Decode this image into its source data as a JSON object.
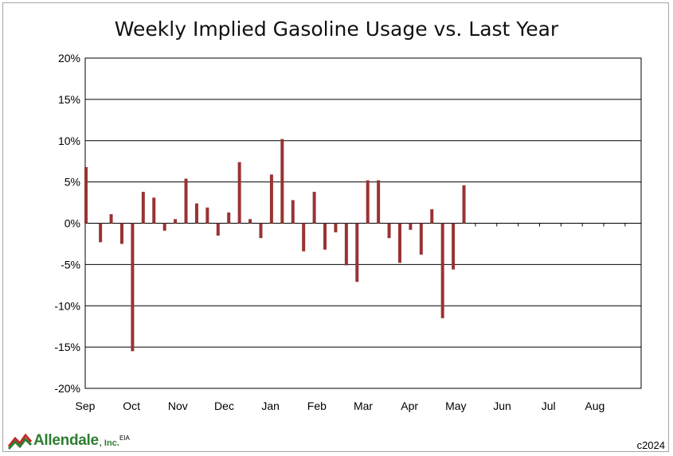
{
  "chart_data": {
    "type": "bar",
    "title": "Weekly Implied Gasoline Usage vs. Last Year",
    "xlabel": "",
    "ylabel": "",
    "ylim": [
      -20,
      20
    ],
    "y_ticks": [
      "20%",
      "15%",
      "10%",
      "5%",
      "0%",
      "-5%",
      "-10%",
      "-15%",
      "-20%"
    ],
    "y_tick_values": [
      20,
      15,
      10,
      5,
      0,
      -5,
      -10,
      -15,
      -20
    ],
    "x_ticks": [
      "Sep",
      "Oct",
      "Nov",
      "Dec",
      "Jan",
      "Feb",
      "Mar",
      "Apr",
      "May",
      "Jun",
      "Jul",
      "Aug"
    ],
    "weeks_total": 52,
    "grid": true,
    "legend": "none",
    "bar_color": "#993333",
    "series": [
      {
        "values": [
          6.8,
          -2.3,
          1.1,
          -2.5,
          -15.5,
          3.8,
          3.1,
          -0.9,
          0.5,
          5.4,
          2.4,
          1.9,
          -1.5,
          1.3,
          7.4,
          0.5,
          -1.8,
          5.9,
          10.2,
          2.8,
          -3.4,
          3.8,
          -3.2,
          -1.1,
          -5.1,
          -7.1,
          5.2,
          5.2,
          -1.8,
          -4.8,
          -0.8,
          -3.8,
          1.7,
          -11.5,
          -5.6,
          4.6
        ]
      }
    ]
  },
  "footer": {
    "logo_text": "Allendale",
    "logo_suffix": ", Inc.",
    "source": "EIA",
    "copyright": "c2024"
  },
  "colors": {
    "logo_green": "#2e7d32",
    "logo_red": "#c62828"
  }
}
